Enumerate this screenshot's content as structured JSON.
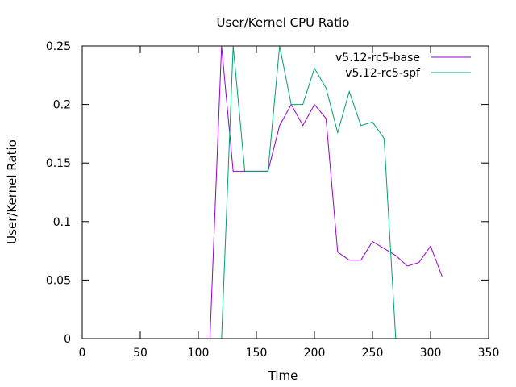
{
  "chart_data": {
    "type": "line",
    "title": "User/Kernel CPU Ratio",
    "xlabel": "Time",
    "ylabel": "User/Kernel Ratio",
    "xlim": [
      0,
      350
    ],
    "ylim": [
      0,
      0.25
    ],
    "xticks": [
      0,
      50,
      100,
      150,
      200,
      250,
      300,
      350
    ],
    "xtick_labels": [
      "0",
      "50",
      "100",
      "150",
      "200",
      "250",
      "300",
      "350"
    ],
    "yticks": [
      0,
      0.05,
      0.1,
      0.15,
      0.2,
      0.25
    ],
    "ytick_labels": [
      "0",
      "0.05",
      "0.1",
      "0.15",
      "0.2",
      "0.25"
    ],
    "grid": false,
    "legend_position": "top-right",
    "series": [
      {
        "name": "v5.12-rc5-base",
        "color": "#9400d3",
        "x": [
          0,
          10,
          20,
          30,
          40,
          50,
          60,
          70,
          80,
          90,
          100,
          110,
          120,
          130,
          140,
          150,
          160,
          170,
          180,
          190,
          200,
          210,
          220,
          230,
          240,
          250,
          260,
          270,
          280,
          290,
          300,
          310
        ],
        "y": [
          0,
          0,
          0,
          0,
          0,
          0,
          0,
          0,
          0,
          0,
          0,
          0,
          0.25,
          0.143,
          0.143,
          0.143,
          0.143,
          0.182,
          0.2,
          0.182,
          0.2,
          0.188,
          0.074,
          0.067,
          0.067,
          0.083,
          0.077,
          0.071,
          0.062,
          0.065,
          0.079,
          0.053
        ]
      },
      {
        "name": "v5.12-rc5-spf",
        "color": "#009e73",
        "x": [
          0,
          10,
          20,
          30,
          40,
          50,
          60,
          70,
          80,
          90,
          100,
          110,
          120,
          130,
          140,
          150,
          160,
          170,
          180,
          190,
          200,
          210,
          220,
          230,
          240,
          250,
          260,
          270
        ],
        "y": [
          0,
          0,
          0,
          0,
          0,
          0,
          0,
          0,
          0,
          0,
          0,
          0,
          0,
          0.25,
          0.143,
          0.143,
          0.143,
          0.25,
          0.2,
          0.2,
          0.231,
          0.214,
          0.176,
          0.211,
          0.182,
          0.185,
          0.171,
          0
        ]
      }
    ]
  }
}
